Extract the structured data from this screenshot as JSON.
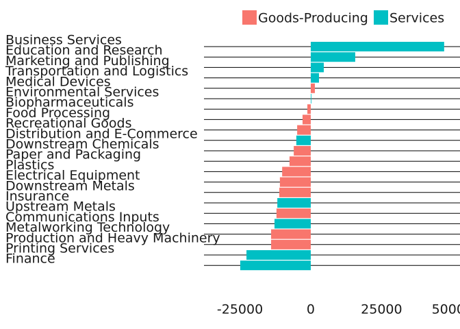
{
  "chart_data": {
    "type": "bar",
    "orientation": "horizontal",
    "categories": [
      "Business Services",
      "Education and Research",
      "Marketing and Publishing",
      "Transportation and Logistics",
      "Medical Devices",
      "Environmental Services",
      "Biopharmaceuticals",
      "Food Processing",
      "Recreational Goods",
      "Distribution and E-Commerce",
      "Downstream Chemicals",
      "Paper and Packaging",
      "Plastics",
      "Electrical Equipment",
      "Downstream Metals",
      "Insurance",
      "Upstream Metals",
      "Communications Inputs",
      "Metalworking Technology",
      "Production and Heavy Machinery",
      "Printing Services",
      "Finance"
    ],
    "series": [
      {
        "name": "Goods-Producing",
        "color": "#f8766d",
        "values": [
          null,
          null,
          null,
          null,
          1450,
          null,
          -1200,
          -2900,
          -4800,
          null,
          -6000,
          -7500,
          -10100,
          -10900,
          -11100,
          null,
          -12100,
          null,
          -14000,
          -14000,
          null,
          null
        ]
      },
      {
        "name": "Services",
        "color": "#00bfc4",
        "values": [
          47100,
          15700,
          4600,
          2900,
          null,
          200,
          null,
          null,
          null,
          -5100,
          null,
          null,
          null,
          null,
          null,
          -11800,
          null,
          -12800,
          null,
          null,
          -22700,
          -24900
        ]
      }
    ],
    "xlim": [
      -37700,
      52700
    ],
    "xticks": [
      -25000,
      0,
      25000,
      50000
    ],
    "legend": "top"
  }
}
